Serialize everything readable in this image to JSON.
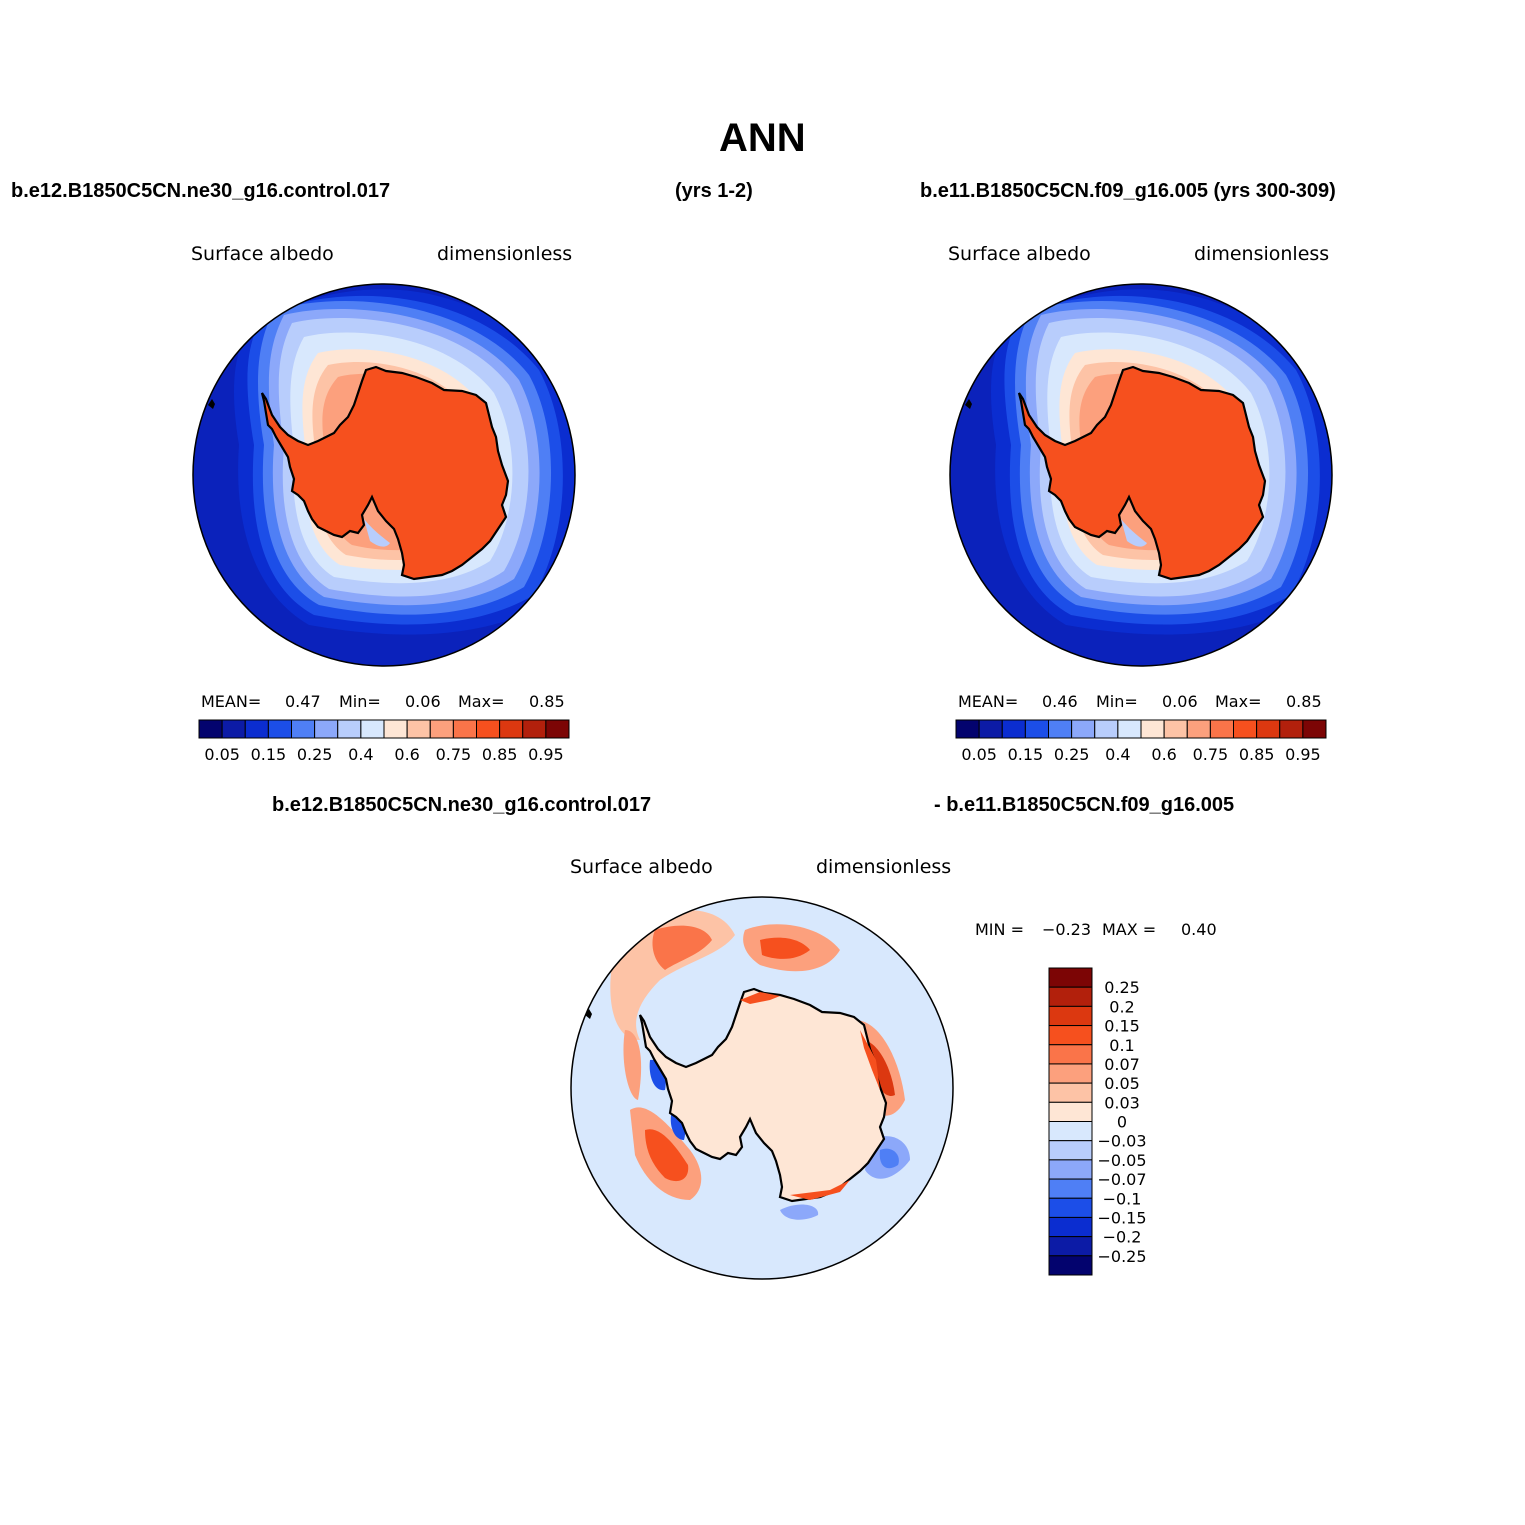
{
  "page": {
    "title": "ANN",
    "left_case_title": "b.e12.B1850C5CN.ne30_g16.control.017",
    "left_case_years": "(yrs 1-2)",
    "right_case_title": "b.e11.B1850C5CN.f09_g16.005 (yrs 300-309)",
    "diff_title_left": "b.e12.B1850C5CN.ne30_g16.control.017",
    "diff_title_right": "- b.e11.B1850C5CN.f09_g16.005"
  },
  "panels": {
    "left": {
      "variable": "Surface albedo",
      "units": "dimensionless",
      "stats": {
        "mean_label": "MEAN=",
        "mean": "0.47",
        "min_label": "Min=",
        "min": "0.06",
        "max_label": "Max=",
        "max": "0.85"
      }
    },
    "right": {
      "variable": "Surface albedo",
      "units": "dimensionless",
      "stats": {
        "mean_label": "MEAN=",
        "mean": "0.46",
        "min_label": "Min=",
        "min": "0.06",
        "max_label": "Max=",
        "max": "0.85"
      }
    },
    "diff": {
      "variable": "Surface albedo",
      "units": "dimensionless",
      "min_label": "MIN =",
      "min": "−0.23",
      "max_label": "MAX =",
      "max": "0.40"
    }
  },
  "colorbar_horizontal": {
    "colors": [
      "#03036e",
      "#0c1ba6",
      "#0b2dd0",
      "#1c4ee8",
      "#4f7ff5",
      "#8ca8fa",
      "#b8cdfc",
      "#d8e8fd",
      "#fee6d5",
      "#fdc3a6",
      "#fca07d",
      "#fa7449",
      "#f6501e",
      "#dc3810",
      "#b2200c",
      "#7c0505"
    ],
    "labels": [
      "0.05",
      "0.15",
      "0.25",
      "0.4",
      "0.6",
      "0.75",
      "0.85",
      "0.95"
    ]
  },
  "colorbar_vertical": {
    "colors_top_to_bottom": [
      "#7c0505",
      "#b2200c",
      "#dc3810",
      "#f6501e",
      "#fa7449",
      "#fca07d",
      "#fdc3a6",
      "#fee6d5",
      "#d8e8fd",
      "#b8cdfc",
      "#8ca8fa",
      "#4f7ff5",
      "#1c4ee8",
      "#0b2dd0",
      "#0c1ba6",
      "#03036e"
    ],
    "labels": [
      "0.25",
      "0.2",
      "0.15",
      "0.1",
      "0.07",
      "0.05",
      "0.03",
      "0",
      "−0.03",
      "−0.05",
      "−0.07",
      "−0.1",
      "−0.15",
      "−0.2",
      "−0.25"
    ]
  },
  "map_colors": {
    "ocean_dark": "#0b22bb",
    "ice_core": "#f6501e",
    "diff_background": "#d8e8fd",
    "diff_land": "#fee6d5"
  }
}
